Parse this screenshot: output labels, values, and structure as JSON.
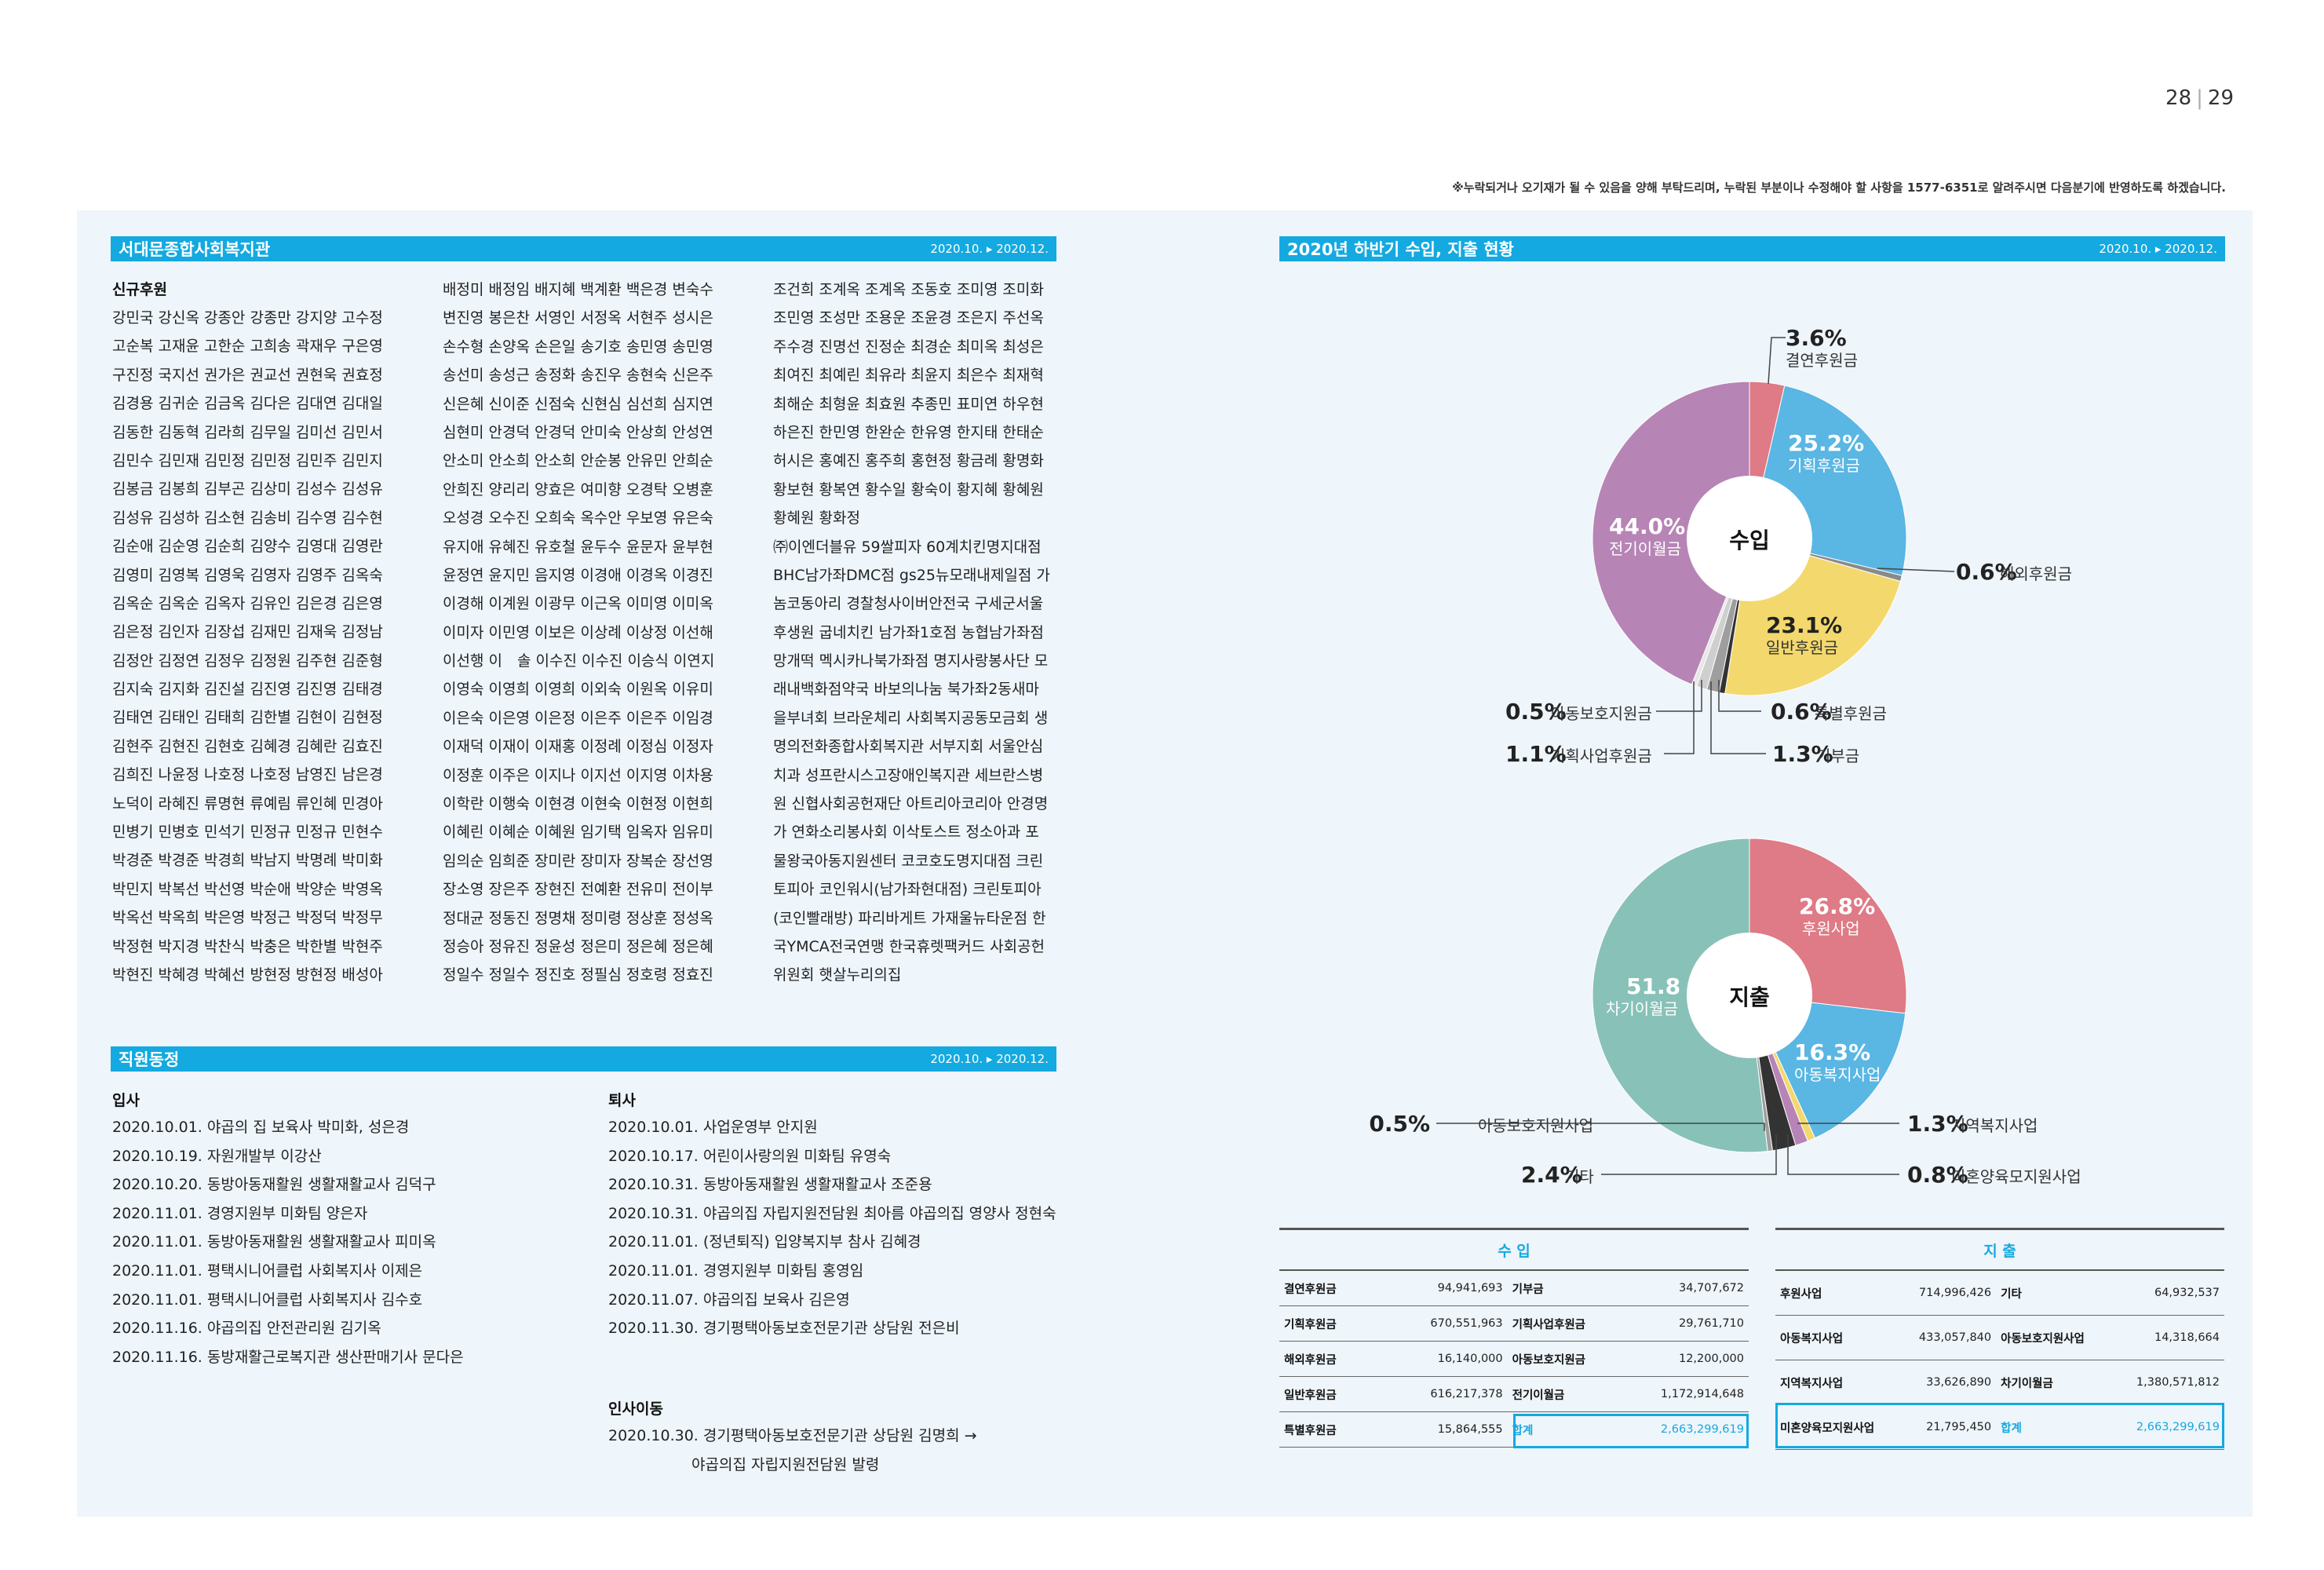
{
  "page_numbers": {
    "left": "28",
    "right": "29"
  },
  "notice": "※누락되거나 오기재가 될 수 있음을 양해 부탁드리며, 누락된 부분이나 수정해야 할 사항을 1577-6351로 알려주시면 다음분기에 반영하도록 하겠습니다.",
  "donors": {
    "title": "서대문종합사회복지관",
    "date": "2020.10. ▸ 2020.12.",
    "subtitle": "신규후원",
    "col1": [
      "강민국 강신옥 강종안 강종만 강지양 고수정",
      "고순복 고재윤 고한순 고희송 곽재우 구은영",
      "구진정 국지선 권가은 권교선 권현욱 권효정",
      "김경용 김귀순 김금옥 김다은 김대연 김대일",
      "김동한 김동혁 김라희 김무일 김미선 김민서",
      "김민수 김민재 김민정 김민정 김민주 김민지",
      "김봉금 김봉희 김부곤 김상미 김성수 김성유",
      "김성유 김성하 김소현 김송비 김수영 김수현",
      "김순애 김순영 김순희 김양수 김영대 김영란",
      "김영미 김영복 김영욱 김영자 김영주 김옥숙",
      "김옥순 김옥순 김옥자 김유인 김은경 김은영",
      "김은정 김인자 김장섭 김재민 김재욱 김정남",
      "김정안 김정연 김정우 김정원 김주현 김준형",
      "김지숙 김지화 김진설 김진영 김진영 김태경",
      "김태연 김태인 김태희 김한별 김현이 김현정",
      "김현주 김현진 김현호 김혜경 김혜란 김효진",
      "김희진 나윤정 나호정 나호정 남영진 남은경",
      "노덕이 라혜진 류명현 류예림 류인혜 민경아",
      "민병기 민병호 민석기 민정규 민정규 민현수",
      "박경준 박경준 박경희 박남지 박명례 박미화",
      "박민지 박복선 박선영 박순애 박양순 박영옥",
      "박옥선 박옥희 박은영 박정근 박정덕 박정무",
      "박정현 박지경 박찬식 박충은 박한별 박현주",
      "박현진 박혜경 박혜선 방현정 방현정 배성아"
    ],
    "col2": [
      "배정미 배정임 배지혜 백계환 백은경 변숙수",
      "변진영 봉은찬 서영인 서정옥 서현주 성시은",
      "손수형 손양옥 손은일 송기호 송민영 송민영",
      "송선미 송성근 송정화 송진우 송현숙 신은주",
      "신은혜 신이준 신점숙 신현심 심선희 심지연",
      "심현미 안경덕 안경덕 안미숙 안상희 안성연",
      "안소미 안소희 안소희 안순봉 안유민 안희순",
      "안희진 양리리 양효은 여미향 오경탁 오병훈",
      "오성경 오수진 오희숙 옥수안 우보영 유은숙",
      "유지애 유혜진 유호철 윤두수 윤문자 윤부현",
      "윤정연 윤지민 음지영 이경애 이경옥 이경진",
      "이경해 이계원 이광무 이근옥 이미영 이미옥",
      "이미자 이민영 이보은 이상례 이상정 이선해",
      "이선행 이　솔 이수진 이수진 이승식 이연지",
      "이영숙 이영희 이영희 이외숙 이원옥 이유미",
      "이은숙 이은영 이은정 이은주 이은주 이임경",
      "이재덕 이재이 이재홍 이정례 이정심 이정자",
      "이정훈 이주은 이지나 이지선 이지영 이차용",
      "이학란 이행숙 이현경 이현숙 이현정 이현희",
      "이혜린 이혜순 이혜원 임기택 임옥자 임유미",
      "임의순 임희준 장미란 장미자 장복순 장선영",
      "장소영 장은주 장현진 전예환 전유미 전이부",
      "정대균 정동진 정명채 정미령 정상훈 정성옥",
      "정승아 정유진 정윤성 정은미 정은혜 정은혜",
      "정일수 정일수 정진호 정필심 정호령 정효진"
    ],
    "col3": [
      "조건희 조계옥 조계옥 조동호 조미영 조미화",
      "조민영 조성만 조용운 조윤경 조은지 주선옥",
      "주수경 진명선 진정순 최경순 최미옥 최성은",
      "최여진 최예린 최유라 최윤지 최은수 최재혁",
      "최해순 최형윤 최효원 추종민 표미연 하우현",
      "하은진 한민영 한완순 한유영 한지태 한태순",
      "허시은 홍예진 홍주희 홍현정 황금례 황명화",
      "황보현 황복연 황수일 황숙이 황지혜 황혜원",
      "황혜원 황화정",
      "㈜이엔더블유 59쌀피자 60계치킨명지대점",
      "BHC남가좌DMC점 gs25뉴모래내제일점 가",
      "놈코동아리 경찰청사이버안전국 구세군서울",
      "후생원 굽네치킨 남가좌1호점 농협남가좌점",
      "망개떡 멕시카나북가좌점 명지사랑봉사단 모",
      "래내백화점약국 바보의나눔 북가좌2동새마",
      "을부녀회 브라운체리 사회복지공동모금회 생",
      "명의전화종합사회복지관 서부지회 서울안심",
      "치과 성프란시스고장애인복지관 세브란스병",
      "원 신협사회공헌재단 아트리아코리아 안경명",
      "가 연화소리봉사회 이삭토스트 정소아과 포",
      "물왕국아동지원센터 코코호도명지대점 크린",
      "토피아 코인워시(남가좌현대점) 크린토피아",
      "(코인빨래방) 파리바게트 가재울뉴타운점 한",
      "국YMCA전국연맹 한국휴렛팩커드 사회공헌",
      "위원회 햇살누리의집"
    ]
  },
  "staff": {
    "title": "직원동정",
    "date": "2020.10. ▸ 2020.12.",
    "join_title": "입사",
    "join": [
      "2020.10.01. 야곱의 집 보육사 박미화, 성은경",
      "2020.10.19. 자원개발부 이강산",
      "2020.10.20. 동방아동재활원 생활재활교사 김덕구",
      "2020.11.01. 경영지원부 미화팀 양은자",
      "2020.11.01. 동방아동재활원 생활재활교사 피미옥",
      "2020.11.01. 평택시니어클럽 사회복지사 이제은",
      "2020.11.01. 평택시니어클럽 사회복지사 김수호",
      "2020.11.16. 야곱의집 안전관리원 김기옥",
      "2020.11.16. 동방재활근로복지관 생산판매기사 문다은"
    ],
    "leave_title": "퇴사",
    "leave": [
      "2020.10.01. 사업운영부 안지원",
      "2020.10.17. 어린이사랑의원 미화팀 유영숙",
      "2020.10.31. 동방아동재활원 생활재활교사 조준용",
      "2020.10.31. 야곱의집 자립지원전담원 최아름 야곱의집 영양사 정현숙",
      "2020.11.01. (정년퇴직) 입양복지부 참사 김혜경",
      "2020.11.01. 경영지원부 미화팀 홍영임",
      "2020.11.07. 야곱의집 보육사 김은영",
      "2020.11.30. 경기평택아동보호전문기관 상담원 전은비"
    ],
    "transfer_title": "인사이동",
    "transfer": [
      "2020.10.30. 경기평택아동보호전문기관 상담원 김명희 →",
      "야곱의집 자립지원전담원 발령"
    ]
  },
  "finance": {
    "title": "2020년 하반기 수입, 지출 현황",
    "date": "2020.10. ▸ 2020.12.",
    "income_table_title": "수 입",
    "expense_table_title": "지 출",
    "income_rows": [
      [
        "결연후원금",
        "94,941,693",
        "기부금",
        "34,707,672"
      ],
      [
        "기획후원금",
        "670,551,963",
        "기획사업후원금",
        "29,761,710"
      ],
      [
        "해외후원금",
        "16,140,000",
        "아동보호지원금",
        "12,200,000"
      ],
      [
        "일반후원금",
        "616,217,378",
        "전기이월금",
        "1,172,914,648"
      ],
      [
        "특별후원금",
        "15,864,555",
        "합계",
        "2,663,299,619"
      ]
    ],
    "expense_rows": [
      [
        "후원사업",
        "714,996,426",
        "기타",
        "64,932,537"
      ],
      [
        "아동복지사업",
        "433,057,840",
        "아동보호지원사업",
        "14,318,664"
      ],
      [
        "지역복지사업",
        "33,626,890",
        "차기이월금",
        "1,380,571,812"
      ],
      [
        "미혼양육모지원사업",
        "21,795,450",
        "합계",
        "2,663,299,619"
      ]
    ]
  },
  "chart_data": [
    {
      "type": "pie",
      "title": "수입",
      "categories": [
        "결연후원금",
        "기획후원금",
        "해외후원금",
        "일반후원금",
        "특별후원금",
        "기부금",
        "기획사업후원금",
        "아동보호지원금",
        "전기이월금"
      ],
      "values": [
        3.6,
        25.2,
        0.6,
        23.1,
        0.6,
        1.3,
        1.1,
        0.5,
        44.0
      ],
      "labels": [
        "3.6%",
        "25.2%",
        "0.6%",
        "23.1%",
        "0.6%",
        "1.3%",
        "1.1%",
        "0.5%",
        "44.0%"
      ],
      "colors": [
        "#de7b86",
        "#5ab6e3",
        "#8a8a8a",
        "#f3d86d",
        "#333333",
        "#9e9e9e",
        "#cfcfcf",
        "#e6e6e6",
        "#b784b6"
      ]
    },
    {
      "type": "pie",
      "title": "지출",
      "categories": [
        "후원사업",
        "아동복지사업",
        "미혼양육모지원사업",
        "지역복지사업",
        "기타",
        "아동보호지원사업",
        "차기이월금"
      ],
      "values": [
        26.8,
        16.3,
        0.8,
        1.3,
        2.4,
        0.5,
        51.8
      ],
      "labels": [
        "26.8%",
        "16.3%",
        "0.8%",
        "1.3%",
        "2.4%",
        "0.5%",
        "51.8 %"
      ],
      "colors": [
        "#de7b86",
        "#5ab6e3",
        "#f3d86d",
        "#b784b6",
        "#333333",
        "#9e9e9e",
        "#88c1b8"
      ]
    }
  ]
}
